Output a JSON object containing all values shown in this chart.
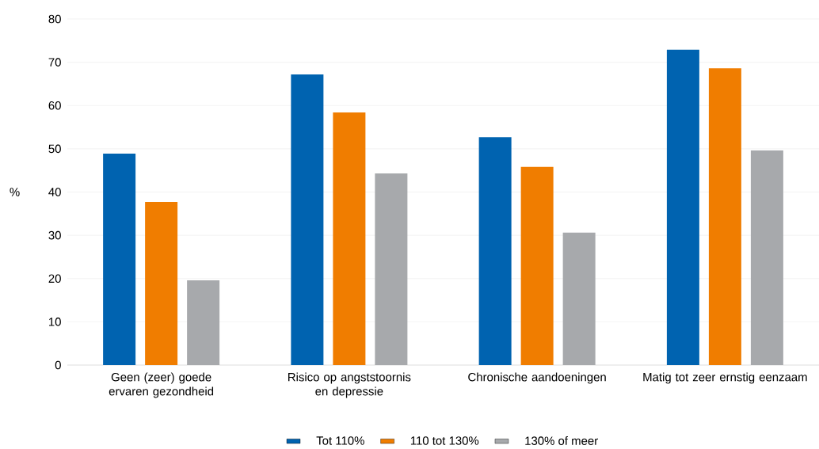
{
  "chart_data": {
    "type": "bar",
    "ylabel": "%",
    "categories": [
      "Geen (zeer) goede ervaren gezondheid",
      "Risico op angststoornis en depressie",
      "Chronische aandoeningen",
      "Matig tot zeer ernstig eenzaam"
    ],
    "series": [
      {
        "name": "Tot 110%",
        "color": "#0063b0",
        "values": [
          48.9,
          67.2,
          52.7,
          72.9
        ]
      },
      {
        "name": "110 tot 130%",
        "color": "#f07d00",
        "values": [
          37.7,
          58.4,
          45.8,
          68.6
        ]
      },
      {
        "name": "130% of meer",
        "color": "#a7a9ac",
        "values": [
          19.6,
          44.3,
          30.6,
          49.6
        ]
      }
    ],
    "ylim": [
      0,
      80
    ],
    "yticks": [
      0,
      10,
      20,
      30,
      40,
      50,
      60,
      70,
      80
    ],
    "grid": "y",
    "legend": "bottom"
  }
}
